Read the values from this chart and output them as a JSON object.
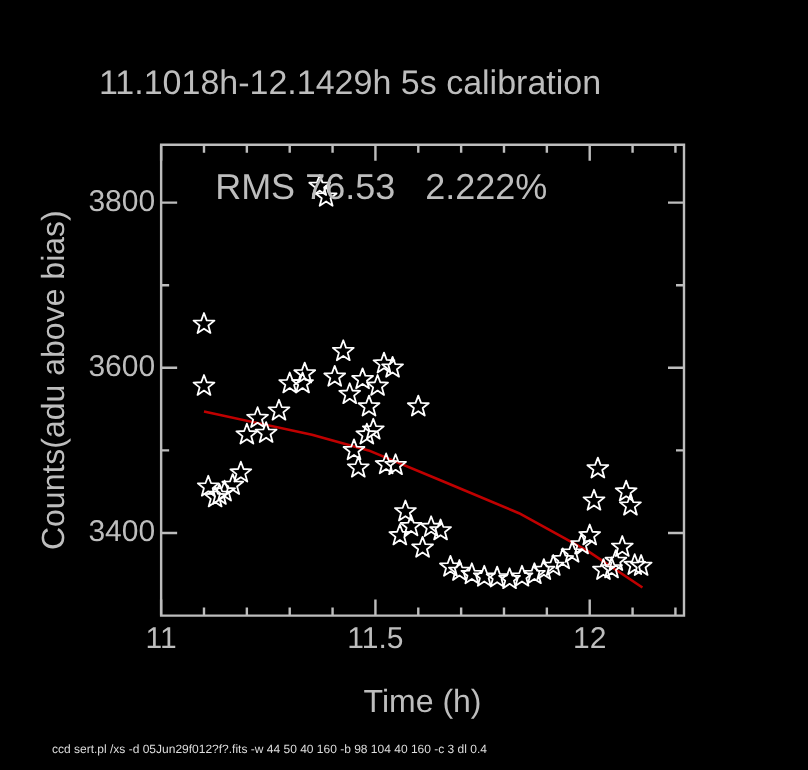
{
  "chart_data": {
    "type": "scatter",
    "title": "11.1018h-12.1429h 5s calibration",
    "xlabel": "Time (h)",
    "ylabel": "Counts(adu above bias)",
    "annotations": [
      "RMS 76.53   2.222%",
      "ccd sert.pl /xs -d 05Jun29f012?f?.fits -w 44 50 40 160 -b 98 104 40 160 -c 3 dl 0.4"
    ],
    "xlim": [
      11,
      12.22
    ],
    "ylim": [
      3300,
      3870
    ],
    "xticks": [
      11,
      {
        "value": 11.1,
        "label": null
      },
      {
        "value": 11.2,
        "label": null
      },
      {
        "value": 11.3,
        "label": null
      },
      {
        "value": 11.4,
        "label": null
      },
      11.5,
      {
        "value": 11.6,
        "label": null
      },
      {
        "value": 11.7,
        "label": null
      },
      {
        "value": 11.8,
        "label": null
      },
      {
        "value": 11.9,
        "label": null
      },
      12,
      {
        "value": 12.1,
        "label": null
      },
      {
        "value": 12.2,
        "label": null
      }
    ],
    "yticks": [
      3400,
      {
        "value": 3500,
        "label": null
      },
      3600,
      {
        "value": 3700,
        "label": null
      },
      3800
    ],
    "marker": "star",
    "series": [
      {
        "color": "#ffffff",
        "x": [
          11.1,
          11.1,
          11.225,
          11.275,
          11.3,
          11.335,
          11.33,
          11.37,
          11.385,
          11.405,
          11.425,
          11.44,
          11.47,
          11.485,
          11.505,
          11.52,
          11.54,
          11.6,
          11.2,
          11.245,
          11.48,
          11.495,
          11.45,
          11.46,
          11.525,
          11.547,
          11.11,
          11.126,
          11.148,
          11.167,
          11.186,
          11.136,
          11.57,
          11.583,
          11.557,
          11.61,
          11.63,
          11.652,
          11.675,
          11.696,
          11.725,
          11.754,
          11.784,
          11.813,
          11.842,
          11.871,
          11.893,
          11.915,
          11.937,
          11.959,
          11.981,
          12.0,
          12.01,
          12.019,
          12.032,
          12.051,
          12.076,
          12.061,
          12.085,
          12.095,
          12.105,
          12.12
        ],
        "values": [
          3653,
          3578,
          3539,
          3548,
          3581,
          3593,
          3581,
          3820,
          3807,
          3589,
          3620,
          3568,
          3586,
          3553,
          3578,
          3605,
          3600,
          3553,
          3519,
          3521,
          3519,
          3525,
          3500,
          3479,
          3483,
          3482,
          3456,
          3443,
          3450,
          3458,
          3473,
          3446,
          3426,
          3408,
          3397,
          3382,
          3407,
          3403,
          3359,
          3354,
          3350,
          3347,
          3346,
          3344,
          3347,
          3350,
          3355,
          3360,
          3368,
          3376,
          3386,
          3397,
          3439,
          3478,
          3355,
          3357,
          3383,
          3366,
          3450,
          3433,
          3361,
          3360
        ]
      },
      {
        "type": "line",
        "color": "#c00000",
        "marker": "none",
        "x": [
          11.1,
          11.352,
          11.484,
          11.66,
          11.835,
          11.996,
          12.123
        ],
        "values": [
          3547,
          3519,
          3500,
          3462,
          3424,
          3378,
          3334
        ]
      }
    ]
  }
}
